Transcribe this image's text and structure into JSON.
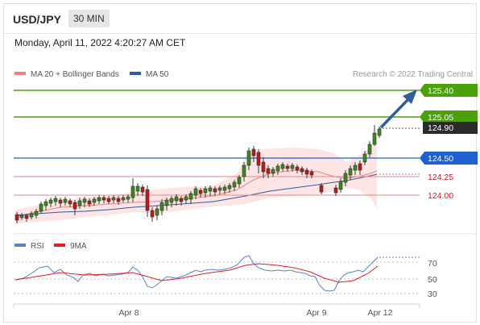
{
  "header": {
    "symbol": "USD/JPY",
    "timeframe": "30 MIN",
    "datetime": "Monday, April 11, 2022 4:20:27 AM CET"
  },
  "legend": {
    "items": [
      {
        "label": "MA 20 + Bollinger Bands",
        "color": "#f08080"
      },
      {
        "label": "MA 50",
        "color": "#2f5c9e"
      }
    ],
    "credit": "Research © 2022 Trading Central"
  },
  "levels": [
    {
      "value": "125.40",
      "kind": "target",
      "color": "#4aa10a"
    },
    {
      "value": "125.05",
      "kind": "target",
      "color": "#4aa10a"
    },
    {
      "value": "124.90",
      "kind": "last",
      "color": "#2b2b2b"
    },
    {
      "value": "124.50",
      "kind": "pivot",
      "color": "#1f5fd0"
    },
    {
      "value": "124.25",
      "kind": "support",
      "color": "#d0202a"
    },
    {
      "value": "124.00",
      "kind": "support",
      "color": "#d0202a"
    }
  ],
  "rsi": {
    "legend": [
      {
        "label": "RSI",
        "color": "#5b7fd6"
      },
      {
        "label": "9MA",
        "color": "#e02020"
      }
    ],
    "axis_labels": [
      "70",
      "50",
      "30"
    ]
  },
  "x_axis": {
    "labels": [
      "Apr 8",
      "Apr 9",
      "Apr 12"
    ]
  }
}
